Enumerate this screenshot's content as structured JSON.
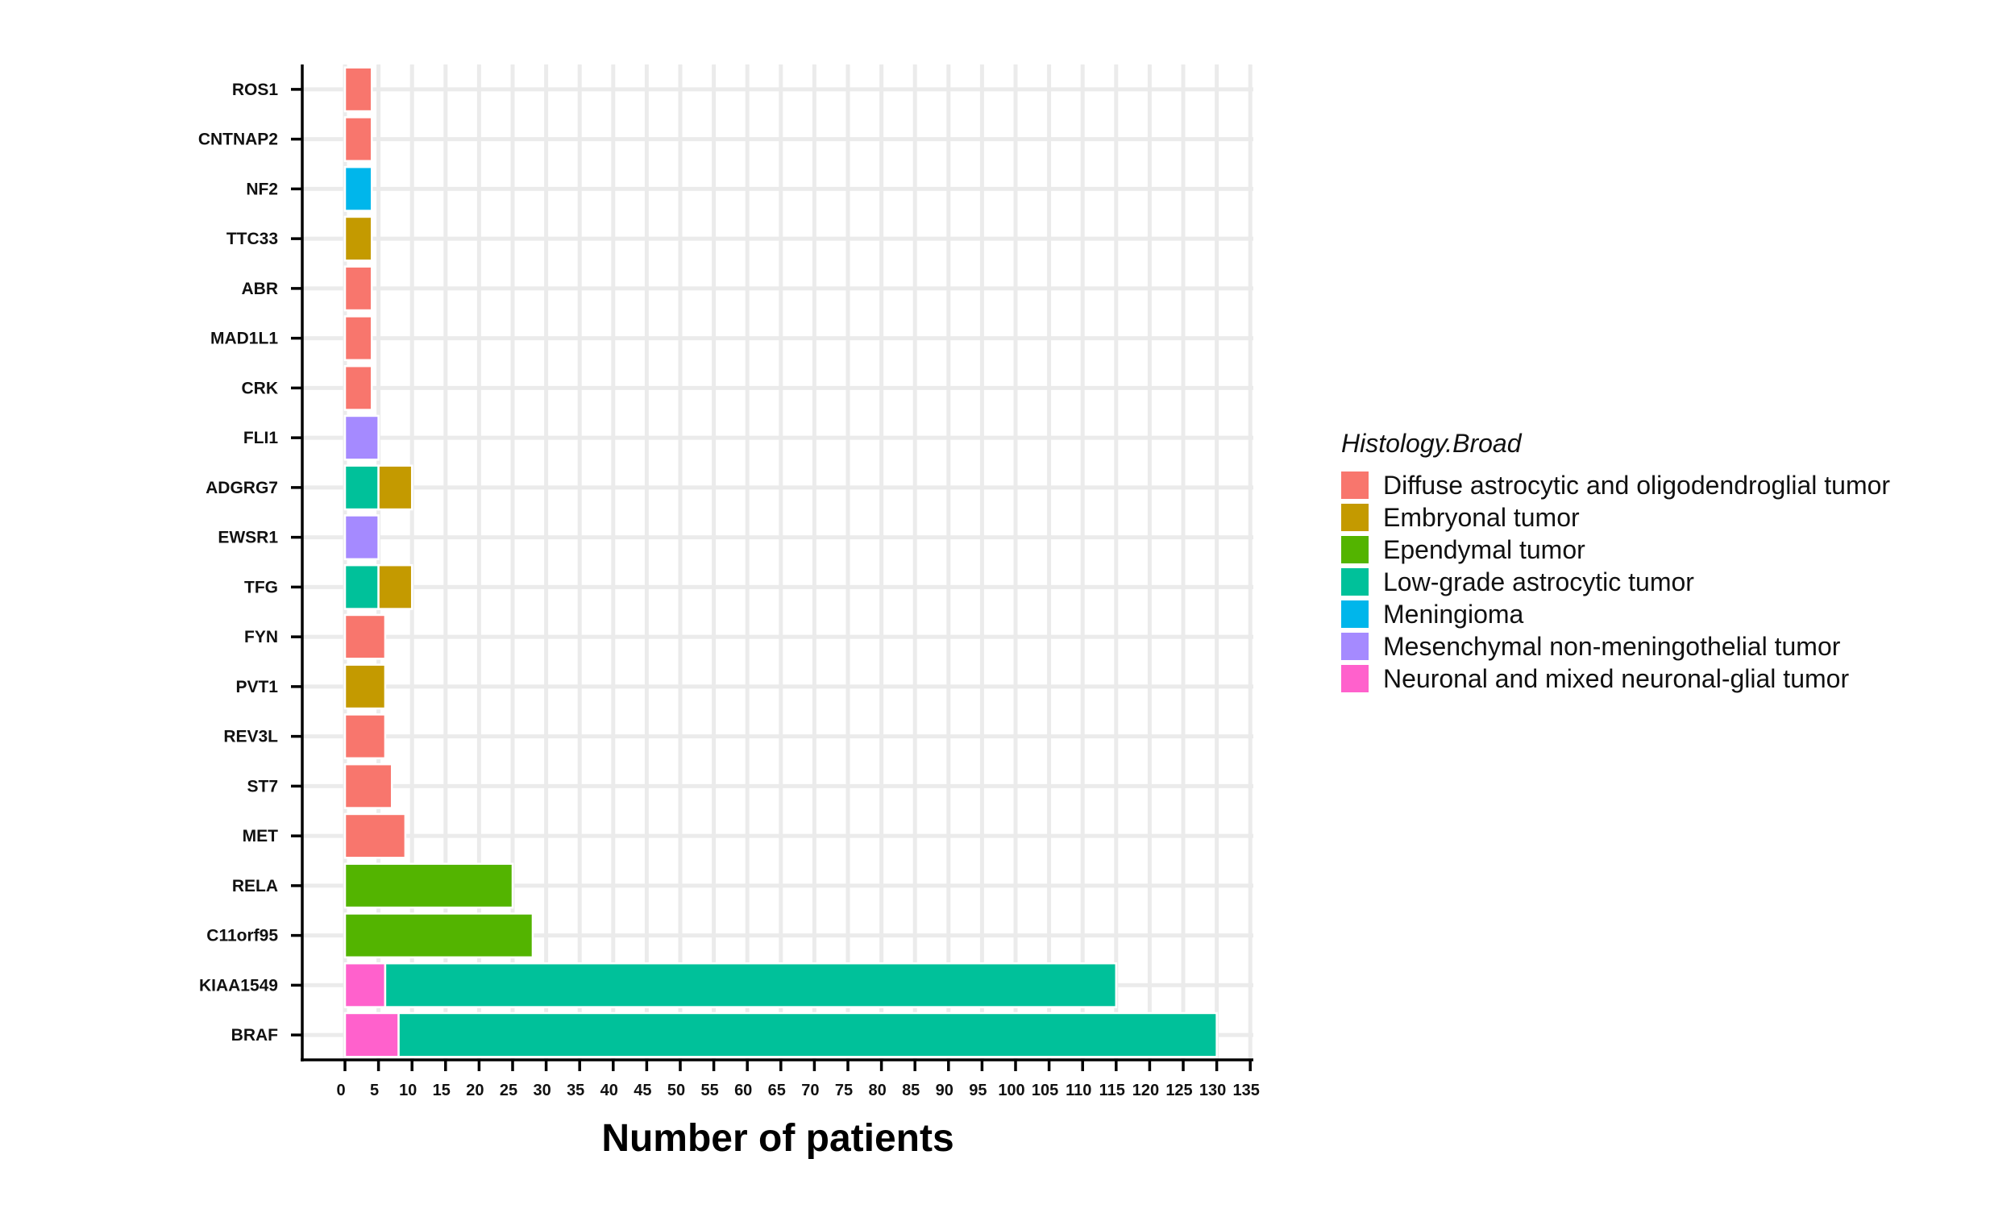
{
  "chart_data": {
    "type": "bar",
    "orientation": "horizontal",
    "stacked": true,
    "title": "",
    "xlabel": "Number of patients",
    "ylabel": "",
    "xlim": [
      0,
      135
    ],
    "x_ticks": [
      0,
      5,
      10,
      15,
      20,
      25,
      30,
      35,
      40,
      45,
      50,
      55,
      60,
      65,
      70,
      75,
      80,
      85,
      90,
      95,
      100,
      105,
      110,
      115,
      120,
      125,
      130,
      135
    ],
    "grid": true,
    "legend_position": "right",
    "categories": [
      "ROS1",
      "CNTNAP2",
      "NF2",
      "TTC33",
      "ABR",
      "MAD1L1",
      "CRK",
      "FLI1",
      "ADGRG7",
      "EWSR1",
      "TFG",
      "FYN",
      "PVT1",
      "REV3L",
      "ST7",
      "MET",
      "RELA",
      "C11orf95",
      "KIAA1549",
      "BRAF"
    ],
    "legend_title": "Histology.Broad",
    "series": [
      {
        "name": "Neuronal and mixed neuronal-glial tumor",
        "color": "#FF61CC",
        "values": [
          0,
          0,
          0,
          0,
          0,
          0,
          0,
          0,
          0,
          0,
          0,
          0,
          0,
          0,
          0,
          0,
          0,
          0,
          6,
          8
        ]
      },
      {
        "name": "Low-grade astrocytic tumor",
        "color": "#00C19A",
        "values": [
          0,
          0,
          0,
          0,
          0,
          0,
          0,
          0,
          5,
          0,
          5,
          0,
          0,
          0,
          0,
          0,
          0,
          0,
          109,
          122
        ]
      },
      {
        "name": "Embryonal tumor",
        "color": "#C49A00",
        "values": [
          0,
          0,
          0,
          4,
          0,
          0,
          0,
          0,
          5,
          0,
          5,
          0,
          6,
          0,
          0,
          0,
          0,
          0,
          0,
          0
        ]
      },
      {
        "name": "Diffuse astrocytic and oligodendroglial tumor",
        "color": "#F8766D",
        "values": [
          4,
          4,
          0,
          0,
          4,
          4,
          4,
          0,
          0,
          0,
          0,
          6,
          0,
          6,
          7,
          9,
          0,
          0,
          0,
          0
        ]
      },
      {
        "name": "Ependymal tumor",
        "color": "#53B400",
        "values": [
          0,
          0,
          0,
          0,
          0,
          0,
          0,
          0,
          0,
          0,
          0,
          0,
          0,
          0,
          0,
          0,
          25,
          28,
          0,
          0
        ]
      },
      {
        "name": "Meningioma",
        "color": "#00B6EB",
        "values": [
          0,
          0,
          4,
          0,
          0,
          0,
          0,
          0,
          0,
          0,
          0,
          0,
          0,
          0,
          0,
          0,
          0,
          0,
          0,
          0
        ]
      },
      {
        "name": "Mesenchymal non-meningothelial tumor",
        "color": "#A58AFF",
        "values": [
          0,
          0,
          0,
          0,
          0,
          0,
          0,
          5,
          0,
          5,
          0,
          0,
          0,
          0,
          0,
          0,
          0,
          0,
          0,
          0
        ]
      }
    ],
    "legend_items": [
      {
        "label": "Diffuse astrocytic and oligodendroglial tumor",
        "color": "#F8766D"
      },
      {
        "label": "Embryonal tumor",
        "color": "#C49A00"
      },
      {
        "label": "Ependymal tumor",
        "color": "#53B400"
      },
      {
        "label": "Low-grade astrocytic tumor",
        "color": "#00C19A"
      },
      {
        "label": "Meningioma",
        "color": "#00B6EB"
      },
      {
        "label": "Mesenchymal non-meningothelial tumor",
        "color": "#A58AFF"
      },
      {
        "label": "Neuronal and mixed neuronal-glial tumor",
        "color": "#FF61CC"
      }
    ]
  }
}
